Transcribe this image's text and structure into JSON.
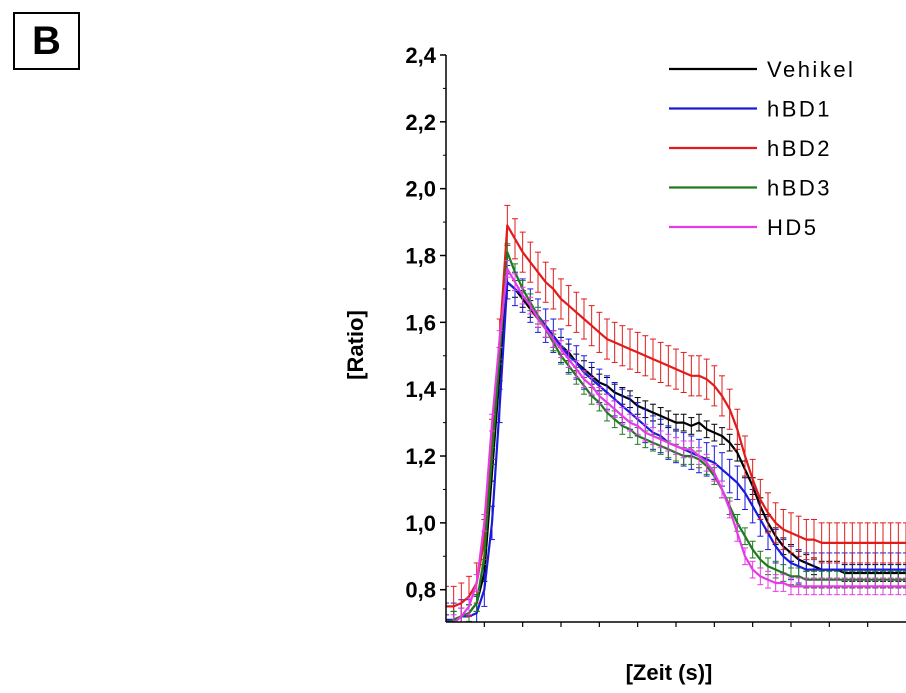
{
  "panel_label": "B",
  "colors": {
    "Vehikel": "#000000",
    "hBD1": "#1a1adc",
    "hBD2": "#e11b1b",
    "hBD3": "#1e7a1e",
    "HD5": "#e43ce4"
  },
  "chart_data": {
    "type": "line",
    "title": "",
    "xlabel": "[Zeit (s)]",
    "ylabel": "[Ratio]",
    "ylim": [
      0.7,
      2.4
    ],
    "y_ticks": [
      "0,8",
      "1,0",
      "1,2",
      "1,4",
      "1,6",
      "1,8",
      "2,0",
      "2,2",
      "2,4"
    ],
    "y_tick_values": [
      0.8,
      1.0,
      1.2,
      1.4,
      1.6,
      1.8,
      2.0,
      2.2,
      2.4
    ],
    "x_range": [
      0,
      60
    ],
    "x_tick_labels_shown": false,
    "legend_position": "top-right",
    "error_bars": true,
    "x": [
      0,
      1,
      2,
      3,
      4,
      5,
      6,
      7,
      8,
      9,
      10,
      11,
      12,
      13,
      14,
      15,
      16,
      17,
      18,
      19,
      20,
      21,
      22,
      23,
      24,
      25,
      26,
      27,
      28,
      29,
      30,
      31,
      32,
      33,
      34,
      35,
      36,
      37,
      38,
      39,
      40,
      41,
      42,
      43,
      44,
      45,
      46,
      47,
      48,
      49,
      50,
      51,
      52,
      53,
      54,
      55,
      56,
      57,
      58,
      59,
      60
    ],
    "series": [
      {
        "name": "Vehikel",
        "error": 0.025,
        "values": [
          0.7,
          0.71,
          0.72,
          0.73,
          0.76,
          0.85,
          1.15,
          1.45,
          1.72,
          1.7,
          1.67,
          1.64,
          1.61,
          1.58,
          1.55,
          1.53,
          1.51,
          1.48,
          1.46,
          1.44,
          1.42,
          1.41,
          1.39,
          1.38,
          1.37,
          1.35,
          1.34,
          1.33,
          1.32,
          1.31,
          1.3,
          1.3,
          1.29,
          1.3,
          1.28,
          1.27,
          1.26,
          1.24,
          1.21,
          1.16,
          1.11,
          1.05,
          1.0,
          0.96,
          0.93,
          0.91,
          0.89,
          0.88,
          0.87,
          0.86,
          0.86,
          0.86,
          0.85,
          0.85,
          0.85,
          0.85,
          0.85,
          0.85,
          0.85,
          0.85,
          0.85
        ]
      },
      {
        "name": "hBD1",
        "error": 0.05,
        "values": [
          0.71,
          0.71,
          0.72,
          0.72,
          0.73,
          0.8,
          1.0,
          1.35,
          1.72,
          1.7,
          1.68,
          1.65,
          1.62,
          1.59,
          1.56,
          1.53,
          1.5,
          1.48,
          1.45,
          1.43,
          1.41,
          1.39,
          1.37,
          1.35,
          1.33,
          1.31,
          1.29,
          1.27,
          1.26,
          1.24,
          1.23,
          1.22,
          1.21,
          1.2,
          1.19,
          1.18,
          1.16,
          1.14,
          1.12,
          1.09,
          1.05,
          1.01,
          0.97,
          0.93,
          0.9,
          0.88,
          0.87,
          0.86,
          0.86,
          0.86,
          0.86,
          0.86,
          0.86,
          0.86,
          0.86,
          0.86,
          0.86,
          0.86,
          0.86,
          0.86,
          0.86
        ]
      },
      {
        "name": "hBD2",
        "error": 0.06,
        "values": [
          0.75,
          0.75,
          0.76,
          0.78,
          0.82,
          0.95,
          1.25,
          1.55,
          1.89,
          1.85,
          1.81,
          1.78,
          1.75,
          1.72,
          1.7,
          1.67,
          1.65,
          1.63,
          1.61,
          1.59,
          1.57,
          1.55,
          1.54,
          1.53,
          1.52,
          1.51,
          1.5,
          1.49,
          1.48,
          1.47,
          1.46,
          1.45,
          1.44,
          1.44,
          1.43,
          1.41,
          1.38,
          1.34,
          1.28,
          1.2,
          1.13,
          1.07,
          1.03,
          1.0,
          0.98,
          0.97,
          0.96,
          0.95,
          0.95,
          0.94,
          0.94,
          0.94,
          0.94,
          0.94,
          0.94,
          0.94,
          0.94,
          0.94,
          0.94,
          0.94,
          0.94
        ]
      },
      {
        "name": "hBD3",
        "error": 0.025,
        "values": [
          0.7,
          0.71,
          0.72,
          0.73,
          0.76,
          0.9,
          1.2,
          1.5,
          1.81,
          1.75,
          1.7,
          1.66,
          1.62,
          1.58,
          1.54,
          1.5,
          1.47,
          1.44,
          1.41,
          1.38,
          1.36,
          1.33,
          1.31,
          1.29,
          1.28,
          1.26,
          1.25,
          1.24,
          1.23,
          1.22,
          1.21,
          1.2,
          1.2,
          1.19,
          1.17,
          1.14,
          1.1,
          1.05,
          1.0,
          0.96,
          0.92,
          0.89,
          0.87,
          0.86,
          0.85,
          0.84,
          0.84,
          0.83,
          0.83,
          0.83,
          0.83,
          0.83,
          0.83,
          0.83,
          0.83,
          0.83,
          0.83,
          0.83,
          0.83,
          0.83,
          0.83
        ]
      },
      {
        "name": "HD5",
        "error": 0.025,
        "values": [
          0.7,
          0.7,
          0.72,
          0.75,
          0.82,
          1.0,
          1.3,
          1.55,
          1.76,
          1.72,
          1.68,
          1.65,
          1.61,
          1.58,
          1.55,
          1.52,
          1.49,
          1.46,
          1.43,
          1.41,
          1.38,
          1.36,
          1.34,
          1.32,
          1.3,
          1.29,
          1.27,
          1.26,
          1.25,
          1.24,
          1.23,
          1.22,
          1.22,
          1.2,
          1.18,
          1.15,
          1.1,
          1.04,
          0.97,
          0.9,
          0.86,
          0.84,
          0.83,
          0.82,
          0.82,
          0.81,
          0.81,
          0.81,
          0.81,
          0.81,
          0.81,
          0.81,
          0.81,
          0.81,
          0.81,
          0.81,
          0.81,
          0.81,
          0.81,
          0.81,
          0.81
        ]
      }
    ]
  }
}
